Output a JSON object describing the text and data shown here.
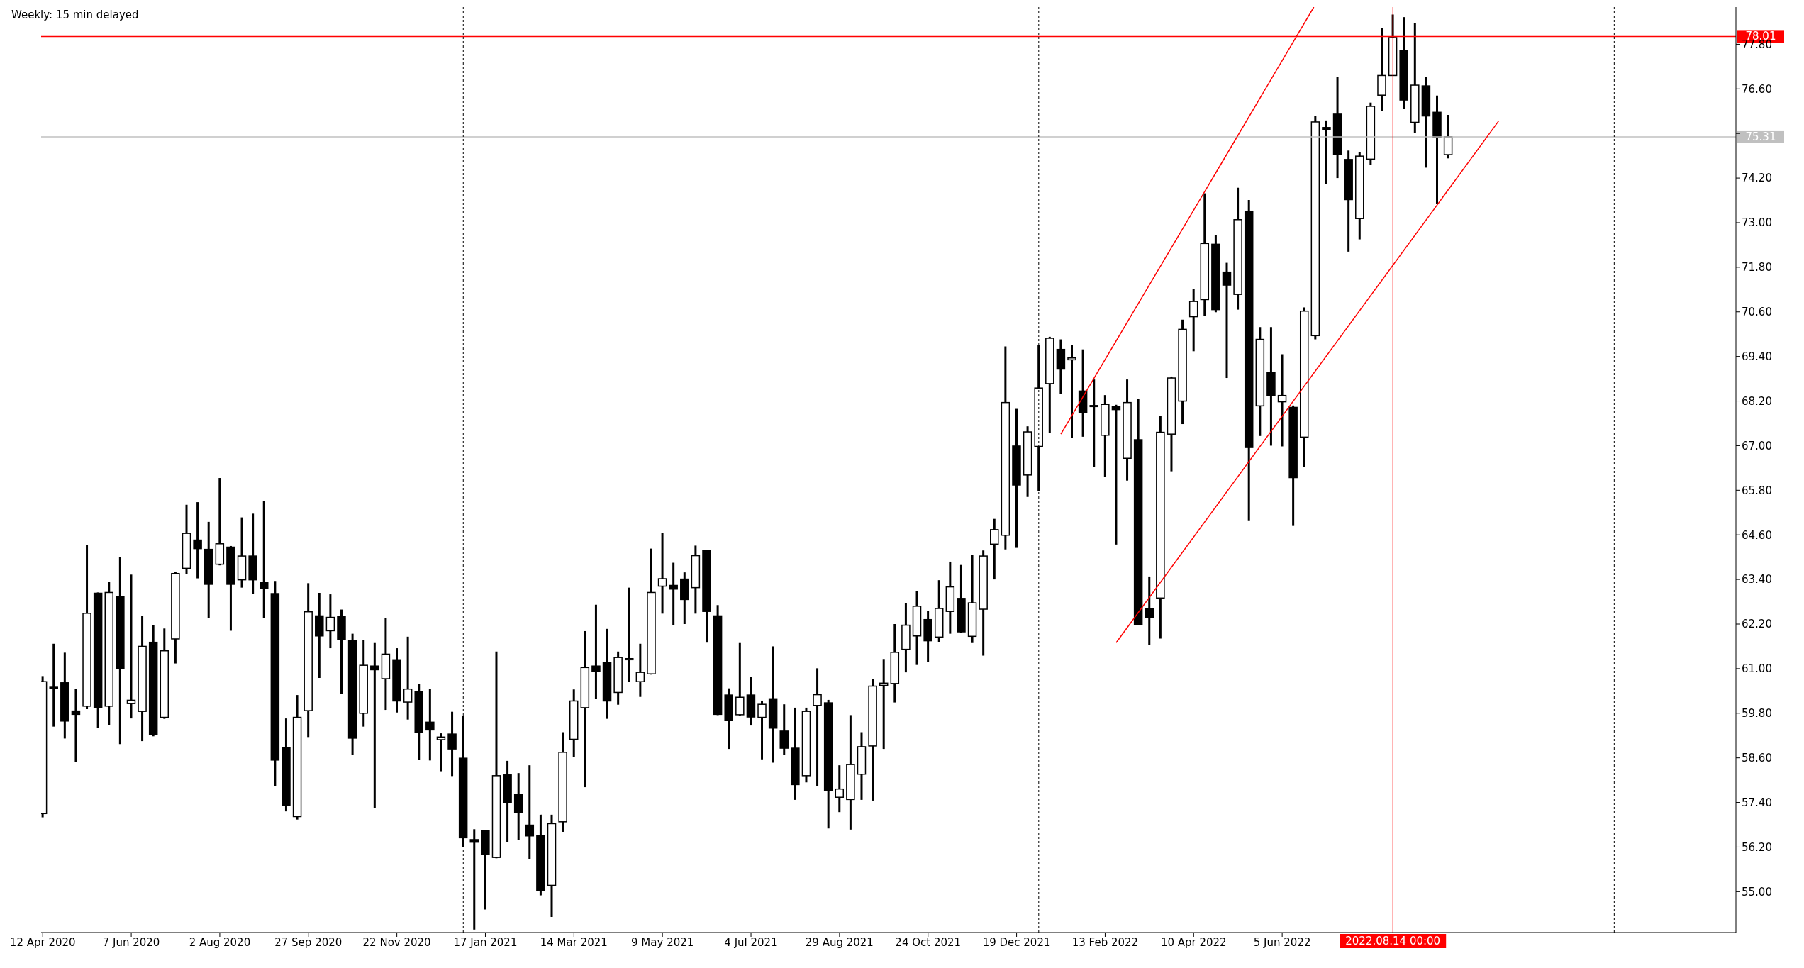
{
  "chart_data": {
    "type": "candlestick",
    "title": "Weekly: 15 min delayed",
    "x": [
      "2020-04-12",
      "2020-04-19",
      "2020-04-26",
      "2020-05-03",
      "2020-05-10",
      "2020-05-17",
      "2020-05-24",
      "2020-05-31",
      "2020-06-07",
      "2020-06-14",
      "2020-06-21",
      "2020-06-28",
      "2020-07-05",
      "2020-07-12",
      "2020-07-19",
      "2020-07-26",
      "2020-08-02",
      "2020-08-09",
      "2020-08-16",
      "2020-08-23",
      "2020-08-30",
      "2020-09-06",
      "2020-09-13",
      "2020-09-20",
      "2020-09-27",
      "2020-10-04",
      "2020-10-11",
      "2020-10-18",
      "2020-10-25",
      "2020-11-01",
      "2020-11-08",
      "2020-11-15",
      "2020-11-22",
      "2020-11-29",
      "2020-12-06",
      "2020-12-13",
      "2020-12-20",
      "2020-12-27",
      "2021-01-03",
      "2021-01-10",
      "2021-01-17",
      "2021-01-24",
      "2021-01-31",
      "2021-02-07",
      "2021-02-14",
      "2021-02-21",
      "2021-02-28",
      "2021-03-07",
      "2021-03-14",
      "2021-03-21",
      "2021-03-28",
      "2021-04-04",
      "2021-04-11",
      "2021-04-18",
      "2021-04-25",
      "2021-05-02",
      "2021-05-09",
      "2021-05-16",
      "2021-05-23",
      "2021-05-30",
      "2021-06-06",
      "2021-06-13",
      "2021-06-20",
      "2021-06-27",
      "2021-07-04",
      "2021-07-11",
      "2021-07-18",
      "2021-07-25",
      "2021-08-01",
      "2021-08-08",
      "2021-08-15",
      "2021-08-22",
      "2021-08-29",
      "2021-09-05",
      "2021-09-12",
      "2021-09-19",
      "2021-09-26",
      "2021-10-03",
      "2021-10-10",
      "2021-10-17",
      "2021-10-24",
      "2021-10-31",
      "2021-11-07",
      "2021-11-14",
      "2021-11-21",
      "2021-11-28",
      "2021-12-05",
      "2021-12-12",
      "2021-12-19",
      "2021-12-26",
      "2022-01-02",
      "2022-01-09",
      "2022-01-16",
      "2022-01-23",
      "2022-01-30",
      "2022-02-06",
      "2022-02-13",
      "2022-02-20",
      "2022-02-27",
      "2022-03-06",
      "2022-03-13",
      "2022-03-20",
      "2022-03-27",
      "2022-04-03",
      "2022-04-10",
      "2022-04-17",
      "2022-04-24",
      "2022-05-01",
      "2022-05-08",
      "2022-05-15",
      "2022-05-22",
      "2022-05-29",
      "2022-06-05",
      "2022-06-12",
      "2022-06-19",
      "2022-06-26",
      "2022-07-03",
      "2022-07-10",
      "2022-07-17",
      "2022-07-24",
      "2022-07-31",
      "2022-08-07",
      "2022-08-14",
      "2022-08-21",
      "2022-08-28",
      "2022-09-04",
      "2022-09-11",
      "2022-09-18"
    ],
    "ohlc": [
      [
        57.1,
        60.8,
        57.0,
        60.65
      ],
      [
        60.5,
        61.67,
        59.44,
        60.48
      ],
      [
        60.62,
        61.43,
        59.12,
        59.59
      ],
      [
        59.86,
        60.45,
        58.48,
        59.77
      ],
      [
        59.99,
        64.33,
        59.91,
        62.49
      ],
      [
        63.03,
        63.05,
        59.41,
        59.96
      ],
      [
        59.99,
        63.33,
        59.49,
        63.05
      ],
      [
        62.94,
        64.01,
        58.97,
        61.01
      ],
      [
        60.06,
        63.53,
        59.66,
        60.15
      ],
      [
        59.85,
        62.42,
        59.05,
        61.6
      ],
      [
        61.71,
        62.18,
        59.18,
        59.22
      ],
      [
        59.69,
        62.08,
        59.65,
        61.48
      ],
      [
        61.8,
        63.6,
        61.14,
        63.56
      ],
      [
        63.7,
        65.41,
        63.54,
        64.64
      ],
      [
        64.46,
        65.48,
        63.43,
        64.23
      ],
      [
        64.21,
        64.95,
        62.36,
        63.27
      ],
      [
        63.81,
        66.13,
        63.78,
        64.36
      ],
      [
        64.27,
        64.3,
        62.02,
        63.27
      ],
      [
        63.39,
        65.07,
        63.18,
        64.03
      ],
      [
        64.03,
        65.17,
        63.01,
        63.39
      ],
      [
        63.33,
        65.52,
        62.36,
        63.16
      ],
      [
        63.02,
        63.36,
        57.85,
        58.54
      ],
      [
        58.87,
        59.66,
        57.16,
        57.33
      ],
      [
        57.02,
        60.29,
        56.94,
        59.69
      ],
      [
        59.87,
        63.3,
        59.16,
        62.53
      ],
      [
        62.42,
        63.04,
        60.75,
        61.88
      ],
      [
        62.02,
        63.0,
        61.55,
        62.38
      ],
      [
        62.4,
        62.59,
        60.32,
        61.78
      ],
      [
        61.76,
        61.94,
        58.67,
        59.13
      ],
      [
        59.8,
        61.78,
        59.44,
        61.09
      ],
      [
        61.07,
        61.69,
        57.25,
        60.97
      ],
      [
        60.73,
        62.36,
        59.89,
        61.39
      ],
      [
        61.24,
        61.55,
        59.82,
        60.13
      ],
      [
        60.1,
        61.86,
        59.63,
        60.45
      ],
      [
        60.38,
        60.59,
        58.54,
        59.29
      ],
      [
        59.56,
        60.45,
        58.53,
        59.35
      ],
      [
        59.09,
        59.26,
        58.24,
        59.16
      ],
      [
        59.24,
        59.84,
        58.11,
        58.84
      ],
      [
        58.59,
        59.73,
        56.2,
        56.45
      ],
      [
        56.4,
        56.68,
        53.98,
        56.33
      ],
      [
        56.64,
        56.66,
        54.52,
        56.0
      ],
      [
        55.92,
        61.46,
        55.9,
        58.12
      ],
      [
        58.14,
        58.52,
        56.34,
        57.4
      ],
      [
        57.62,
        58.19,
        56.39,
        57.12
      ],
      [
        56.79,
        58.4,
        55.88,
        56.5
      ],
      [
        56.5,
        57.07,
        54.9,
        55.03
      ],
      [
        55.17,
        57.07,
        54.32,
        56.83
      ],
      [
        56.88,
        59.29,
        56.61,
        58.75
      ],
      [
        59.1,
        60.44,
        58.62,
        60.13
      ],
      [
        59.95,
        62.01,
        57.81,
        61.03
      ],
      [
        61.07,
        62.72,
        60.19,
        60.92
      ],
      [
        61.16,
        62.07,
        59.65,
        60.13
      ],
      [
        60.36,
        61.46,
        60.03,
        61.3
      ],
      [
        61.24,
        63.18,
        60.65,
        61.27
      ],
      [
        60.65,
        61.67,
        60.24,
        60.9
      ],
      [
        60.86,
        64.23,
        60.84,
        63.05
      ],
      [
        63.22,
        64.66,
        62.48,
        63.42
      ],
      [
        63.24,
        63.85,
        62.18,
        63.14
      ],
      [
        63.41,
        63.59,
        62.2,
        62.86
      ],
      [
        63.18,
        64.31,
        62.48,
        64.04
      ],
      [
        64.17,
        64.19,
        61.7,
        62.54
      ],
      [
        62.42,
        62.71,
        59.75,
        59.77
      ],
      [
        60.29,
        60.47,
        58.84,
        59.61
      ],
      [
        59.76,
        61.69,
        59.74,
        60.23
      ],
      [
        60.29,
        60.77,
        59.47,
        59.7
      ],
      [
        59.69,
        60.14,
        58.56,
        60.04
      ],
      [
        60.19,
        61.6,
        58.47,
        59.4
      ],
      [
        59.32,
        60.04,
        58.67,
        58.86
      ],
      [
        58.86,
        59.95,
        57.47,
        57.88
      ],
      [
        58.12,
        59.95,
        57.94,
        59.85
      ],
      [
        60.01,
        61.01,
        57.85,
        60.3
      ],
      [
        60.08,
        60.16,
        56.7,
        57.72
      ],
      [
        57.54,
        58.4,
        57.14,
        57.76
      ],
      [
        57.48,
        59.75,
        56.67,
        58.42
      ],
      [
        58.16,
        59.29,
        57.47,
        58.9
      ],
      [
        58.92,
        60.73,
        57.45,
        60.53
      ],
      [
        60.55,
        61.26,
        58.84,
        60.61
      ],
      [
        60.6,
        62.2,
        60.09,
        61.44
      ],
      [
        61.52,
        62.76,
        60.9,
        62.17
      ],
      [
        61.88,
        63.08,
        61.1,
        62.68
      ],
      [
        62.32,
        62.56,
        61.17,
        61.75
      ],
      [
        61.85,
        63.38,
        61.71,
        62.62
      ],
      [
        62.54,
        63.88,
        61.94,
        63.2
      ],
      [
        62.89,
        63.79,
        61.97,
        61.99
      ],
      [
        61.87,
        64.06,
        61.69,
        62.77
      ],
      [
        62.6,
        64.18,
        61.35,
        64.03
      ],
      [
        64.35,
        65.03,
        63.4,
        64.74
      ],
      [
        64.59,
        69.67,
        64.21,
        68.16
      ],
      [
        66.99,
        67.99,
        64.25,
        65.94
      ],
      [
        66.21,
        67.52,
        65.62,
        67.37
      ],
      [
        66.98,
        69.7,
        65.78,
        68.55
      ],
      [
        68.67,
        69.93,
        67.35,
        69.89
      ],
      [
        69.59,
        69.86,
        68.4,
        69.06
      ],
      [
        69.31,
        69.7,
        67.21,
        69.36
      ],
      [
        68.47,
        69.59,
        67.24,
        67.89
      ],
      [
        68.08,
        68.78,
        66.42,
        68.06
      ],
      [
        67.28,
        68.36,
        66.16,
        68.11
      ],
      [
        68.05,
        68.1,
        64.34,
        67.97
      ],
      [
        66.66,
        68.78,
        66.06,
        68.16
      ],
      [
        67.16,
        68.26,
        62.16,
        62.18
      ],
      [
        62.62,
        63.48,
        61.64,
        62.37
      ],
      [
        62.9,
        67.8,
        61.81,
        67.36
      ],
      [
        67.31,
        68.86,
        66.31,
        68.82
      ],
      [
        68.2,
        70.39,
        67.58,
        70.13
      ],
      [
        70.47,
        71.21,
        69.54,
        70.88
      ],
      [
        70.93,
        73.79,
        70.5,
        72.44
      ],
      [
        72.42,
        72.67,
        70.59,
        70.66
      ],
      [
        71.67,
        71.92,
        68.82,
        71.32
      ],
      [
        71.07,
        73.94,
        70.66,
        73.08
      ],
      [
        73.31,
        73.61,
        64.99,
        66.95
      ],
      [
        68.07,
        70.19,
        67.26,
        69.86
      ],
      [
        68.96,
        70.19,
        67.0,
        68.35
      ],
      [
        68.18,
        69.46,
        66.98,
        68.35
      ],
      [
        68.03,
        68.08,
        64.84,
        66.14
      ],
      [
        67.23,
        70.72,
        66.42,
        70.62
      ],
      [
        69.96,
        75.86,
        69.86,
        75.71
      ],
      [
        75.56,
        75.75,
        74.04,
        75.5
      ],
      [
        75.92,
        76.93,
        74.2,
        74.84
      ],
      [
        74.7,
        74.94,
        72.22,
        73.62
      ],
      [
        73.11,
        74.89,
        72.55,
        74.79
      ],
      [
        74.71,
        76.23,
        74.56,
        76.13
      ],
      [
        76.43,
        78.23,
        76.0,
        76.96
      ],
      [
        76.96,
        78.6,
        76.96,
        77.98
      ],
      [
        77.64,
        78.53,
        76.07,
        76.3
      ],
      [
        75.7,
        78.38,
        75.42,
        76.7
      ],
      [
        76.68,
        76.93,
        74.48,
        75.87
      ],
      [
        75.97,
        76.42,
        73.5,
        75.3
      ],
      [
        74.83,
        75.9,
        74.73,
        75.31
      ]
    ],
    "xlim": [
      "2020-04-11",
      "2023-03-19"
    ],
    "xticks": [
      {
        "value": "2020-04-12",
        "label": "12 Apr 2020"
      },
      {
        "value": "2020-06-07",
        "label": "7 Jun 2020"
      },
      {
        "value": "2020-08-02",
        "label": "2 Aug 2020"
      },
      {
        "value": "2020-09-27",
        "label": "27 Sep 2020"
      },
      {
        "value": "2020-11-22",
        "label": "22 Nov 2020"
      },
      {
        "value": "2021-01-17",
        "label": "17 Jan 2021"
      },
      {
        "value": "2021-03-14",
        "label": "14 Mar 2021"
      },
      {
        "value": "2021-05-09",
        "label": "9 May 2021"
      },
      {
        "value": "2021-07-04",
        "label": "4 Jul 2021"
      },
      {
        "value": "2021-08-29",
        "label": "29 Aug 2021"
      },
      {
        "value": "2021-10-24",
        "label": "24 Oct 2021"
      },
      {
        "value": "2021-12-19",
        "label": "19 Dec 2021"
      },
      {
        "value": "2022-02-13",
        "label": "13 Feb 2022"
      },
      {
        "value": "2022-04-10",
        "label": "10 Apr 2022"
      },
      {
        "value": "2022-06-05",
        "label": "5 Jun 2022"
      }
    ],
    "ylim": [
      53.9,
      78.8
    ],
    "yticks": [
      {
        "value": 55.0,
        "label": "55.00"
      },
      {
        "value": 56.2,
        "label": "56.20"
      },
      {
        "value": 57.4,
        "label": "57.40"
      },
      {
        "value": 58.6,
        "label": "58.60"
      },
      {
        "value": 59.8,
        "label": "59.80"
      },
      {
        "value": 61.0,
        "label": "61.00"
      },
      {
        "value": 62.2,
        "label": "62.20"
      },
      {
        "value": 63.4,
        "label": "63.40"
      },
      {
        "value": 64.6,
        "label": "64.60"
      },
      {
        "value": 65.8,
        "label": "65.80"
      },
      {
        "value": 67.0,
        "label": "67.00"
      },
      {
        "value": 68.2,
        "label": "68.20"
      },
      {
        "value": 69.4,
        "label": "69.40"
      },
      {
        "value": 70.6,
        "label": "70.60"
      },
      {
        "value": 71.8,
        "label": "71.80"
      },
      {
        "value": 73.0,
        "label": "73.00"
      },
      {
        "value": 74.2,
        "label": "74.20"
      },
      {
        "value": 75.4,
        "label": null
      },
      {
        "value": 76.6,
        "label": "76.60"
      },
      {
        "value": 77.8,
        "label": "77.80"
      }
    ],
    "series": [
      {
        "type": "line",
        "color": "#ff0000",
        "x": [
          "2022-01-16",
          "2022-04-24",
          "2022-06-25"
        ],
        "values": [
          67.31,
          74.34,
          78.8
        ]
      },
      {
        "type": "line",
        "color": "#ff0000",
        "x": [
          "2022-02-20",
          "2022-10-20"
        ],
        "values": [
          61.7,
          75.74
        ]
      }
    ],
    "ref_lines": [
      {
        "axis": "y",
        "value": 78.01,
        "label": "78.01",
        "color": "#ff0000",
        "line_style": "solid"
      },
      {
        "axis": "y",
        "value": 75.31,
        "label": "75.31",
        "color": "#c0c0c0",
        "line_style": "solid"
      },
      {
        "axis": "x",
        "value": "2022-08-14",
        "label": "2022.08.14 00:00",
        "color": "#ff0000",
        "line_style": "solid"
      },
      {
        "axis": "x",
        "value": "2021-01-03",
        "label": null,
        "color": "#000000",
        "line_style": "dotted"
      },
      {
        "axis": "x",
        "value": "2022-01-02",
        "label": null,
        "color": "#000000",
        "line_style": "dotted"
      },
      {
        "axis": "x",
        "value": "2023-01-01",
        "label": null,
        "color": "#000000",
        "line_style": "dotted"
      }
    ],
    "grid": false,
    "legend": false
  }
}
